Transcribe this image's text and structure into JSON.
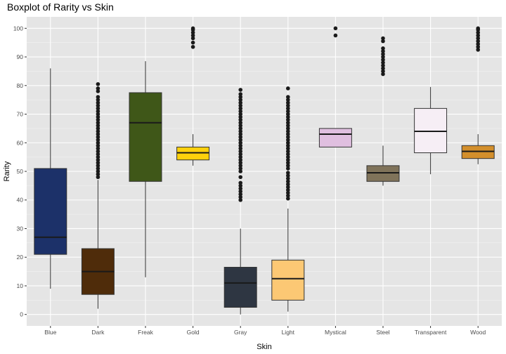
{
  "chart_data": {
    "type": "boxplot",
    "title": "Boxplot of Rarity vs Skin",
    "xlabel": "Skin",
    "ylabel": "Rarity",
    "ylim": [
      -4,
      104
    ],
    "yticks": [
      0,
      10,
      20,
      30,
      40,
      50,
      60,
      70,
      80,
      90,
      100
    ],
    "grid": true,
    "legend": "none",
    "categories": [
      "Blue",
      "Dark",
      "Freak",
      "Gold",
      "Gray",
      "Light",
      "Mystical",
      "Steel",
      "Transparent",
      "Wood"
    ],
    "boxes": [
      {
        "category": "Blue",
        "color": "#1c3169",
        "whisker_low": 9,
        "q1": 21,
        "median": 27,
        "q3": 51,
        "whisker_high": 86,
        "outliers": []
      },
      {
        "category": "Dark",
        "color": "#4f2c0a",
        "whisker_low": 2,
        "q1": 7,
        "median": 15,
        "q3": 23,
        "whisker_high": 47,
        "outliers": [
          48,
          49,
          50,
          51,
          52,
          53,
          54,
          55,
          56,
          57,
          58,
          59,
          60,
          61,
          62,
          63,
          64,
          65,
          66,
          67,
          68,
          69,
          70,
          71,
          72,
          73,
          74,
          75,
          76,
          78,
          79,
          80.5
        ]
      },
      {
        "category": "Freak",
        "color": "#3f5718",
        "whisker_low": 13,
        "q1": 46.5,
        "median": 67,
        "q3": 77.5,
        "whisker_high": 88.5,
        "outliers": []
      },
      {
        "category": "Gold",
        "color": "#fed10c",
        "whisker_low": 52,
        "q1": 54,
        "median": 56.5,
        "q3": 58.5,
        "whisker_high": 63,
        "outliers": [
          93.5,
          95,
          96.5,
          97.5,
          98.5,
          99.5,
          100
        ]
      },
      {
        "category": "Gray",
        "color": "#2e3642",
        "whisker_low": 0,
        "q1": 2.5,
        "median": 11,
        "q3": 16.5,
        "whisker_high": 30,
        "outliers": [
          40,
          41,
          42,
          43,
          44,
          45,
          46,
          48,
          50,
          51,
          52,
          53,
          54,
          55,
          56,
          57,
          58,
          59,
          60,
          61,
          62,
          63,
          64,
          65,
          66,
          67,
          68,
          69,
          70,
          71,
          72,
          73,
          74,
          75,
          76,
          77,
          78.5
        ]
      },
      {
        "category": "Light",
        "color": "#fcc874",
        "whisker_low": 1,
        "q1": 5,
        "median": 12.5,
        "q3": 19,
        "whisker_high": 37,
        "outliers": [
          40.5,
          41.5,
          42.5,
          43.5,
          44.5,
          45.5,
          46.5,
          47.5,
          48.5,
          49.5,
          51,
          52,
          53,
          54,
          55,
          56,
          57,
          58,
          59,
          60,
          61,
          62,
          63,
          64,
          65,
          66,
          67,
          68,
          69,
          70,
          71,
          72,
          73,
          74,
          75,
          76,
          79
        ]
      },
      {
        "category": "Mystical",
        "color": "#e0bfe0",
        "whisker_low": 58.5,
        "q1": 58.5,
        "median": 63,
        "q3": 65,
        "whisker_high": 65,
        "outliers": [
          97.5,
          100
        ]
      },
      {
        "category": "Steel",
        "color": "#80735a",
        "whisker_low": 45,
        "q1": 46.5,
        "median": 49.5,
        "q3": 52,
        "whisker_high": 59,
        "outliers": [
          84,
          85,
          86,
          87,
          88,
          89,
          90,
          91,
          92,
          93,
          95.5,
          96.5
        ]
      },
      {
        "category": "Transparent",
        "color": "#f6eef5",
        "whisker_low": 49,
        "q1": 56.5,
        "median": 64,
        "q3": 72,
        "whisker_high": 79.5,
        "outliers": []
      },
      {
        "category": "Wood",
        "color": "#d38f2c",
        "whisker_low": 52.5,
        "q1": 54.5,
        "median": 57,
        "q3": 59,
        "whisker_high": 63,
        "outliers": [
          92.5,
          93.5,
          94.5,
          95.5,
          96.5,
          97.5,
          98.5,
          99.5,
          100
        ]
      }
    ]
  }
}
